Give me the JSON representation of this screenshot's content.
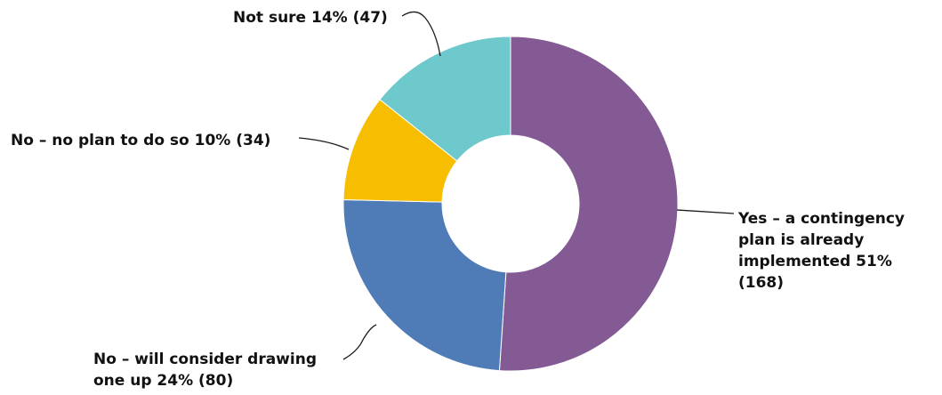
{
  "chart_data": {
    "type": "pie",
    "title": "",
    "variant": "donut",
    "start_angle_deg": 0,
    "direction": "clockwise",
    "slices": [
      {
        "name": "Yes – a contingency plan is already implemented",
        "value": 168,
        "percent": 51,
        "color": "#845a95",
        "label_line1": "Yes – a contingency",
        "label_line2": "plan is already",
        "label_line3": "implemented 51%",
        "label_line4": "(168)"
      },
      {
        "name": "No – will consider drawing one up",
        "value": 80,
        "percent": 24,
        "color": "#4f7cb7",
        "label_line1": "No – will consider drawing",
        "label_line2": "one up 24% (80)"
      },
      {
        "name": "No – no plan to do so",
        "value": 34,
        "percent": 10,
        "color": "#f7bd00",
        "label_line1": "No – no plan to do so 10% (34)"
      },
      {
        "name": "Not sure",
        "value": 47,
        "percent": 14,
        "color": "#6dc9cc",
        "label_line1": "Not sure 14% (47)"
      }
    ]
  }
}
